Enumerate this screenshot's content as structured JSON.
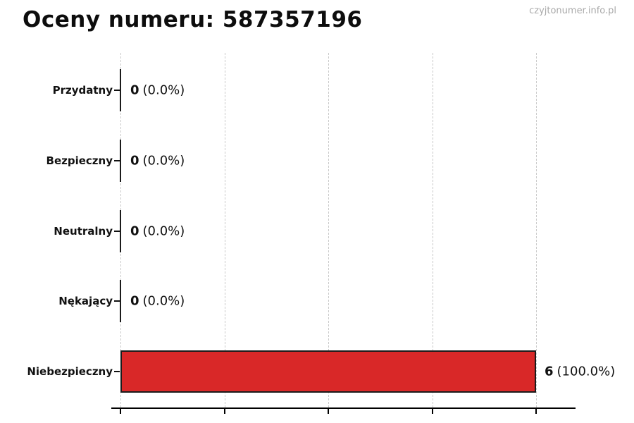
{
  "page": {
    "watermark": "czyjtonumer.info.pl"
  },
  "chart_data": {
    "type": "bar",
    "orientation": "horizontal",
    "title": "Oceny numeru: 587357196",
    "categories": [
      "Przydatny",
      "Bezpieczny",
      "Neutralny",
      "Nękający",
      "Niebezpieczny"
    ],
    "values": [
      0,
      0,
      0,
      0,
      6
    ],
    "value_labels": [
      "0",
      "0",
      "0",
      "0",
      "6"
    ],
    "percent_labels": [
      "(0.0%)",
      "(0.0%)",
      "(0.0%)",
      "(0.0%)",
      "(100.0%)"
    ],
    "xlim": [
      0,
      6
    ],
    "x_gridlines": [
      0,
      1.5,
      3,
      4.5,
      6
    ],
    "grid": "dashed-vertical",
    "legend": "none",
    "xlabel": "",
    "ylabel": "",
    "bar_color": "#d92828",
    "bar_edge_color": "#1b1b1b",
    "zero_bar_style": "thin-black-line"
  }
}
